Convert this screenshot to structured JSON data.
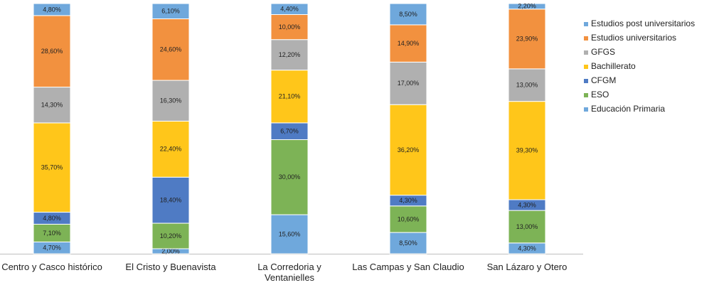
{
  "chart_data": {
    "type": "stacked_bar",
    "categories": [
      "Centro y Casco histórico",
      "El Cristo y Buenavista",
      "La Corredoria y Ventanielles",
      "Las Campas y San Claudio",
      "San Lázaro y Otero"
    ],
    "series": [
      {
        "name": "Educación Primaria",
        "color": "#6fa8dc",
        "values": [
          4.7,
          2.0,
          15.6,
          8.5,
          4.3
        ],
        "value_labels": [
          "4,70%",
          "2,00%",
          "15,60%",
          "8,50%",
          "4,30%"
        ]
      },
      {
        "name": "ESO",
        "color": "#7db356",
        "values": [
          7.1,
          10.2,
          30.0,
          10.6,
          13.0
        ],
        "value_labels": [
          "7,10%",
          "10,20%",
          "30,00%",
          "10,60%",
          "13,00%"
        ]
      },
      {
        "name": "CFGM",
        "color": "#4f7bc4",
        "values": [
          4.8,
          18.4,
          6.7,
          4.3,
          4.3
        ],
        "value_labels": [
          "4,80%",
          "18,40%",
          "6,70%",
          "4,30%",
          "4,30%"
        ]
      },
      {
        "name": "Bachillerato",
        "color": "#ffc61a",
        "values": [
          35.7,
          22.4,
          21.1,
          36.2,
          39.3
        ],
        "value_labels": [
          "35,70%",
          "22,40%",
          "21,10%",
          "36,20%",
          "39,30%"
        ]
      },
      {
        "name": "GFGS",
        "color": "#b0b0b0",
        "values": [
          14.3,
          16.3,
          12.2,
          17.0,
          13.0
        ],
        "value_labels": [
          "14,30%",
          "16,30%",
          "12,20%",
          "17,00%",
          "13,00%"
        ]
      },
      {
        "name": "Estudios universitarios",
        "color": "#f2913f",
        "values": [
          28.6,
          24.6,
          10.0,
          14.9,
          23.9
        ],
        "value_labels": [
          "28,60%",
          "24,60%",
          "10,00%",
          "14,90%",
          "23,90%"
        ]
      },
      {
        "name": "Estudios post universitarios",
        "color": "#6fa8dc",
        "values": [
          4.8,
          6.1,
          4.4,
          8.5,
          2.2
        ],
        "value_labels": [
          "4,80%",
          "6,10%",
          "4,40%",
          "8,50%",
          "2,20%"
        ]
      }
    ]
  }
}
